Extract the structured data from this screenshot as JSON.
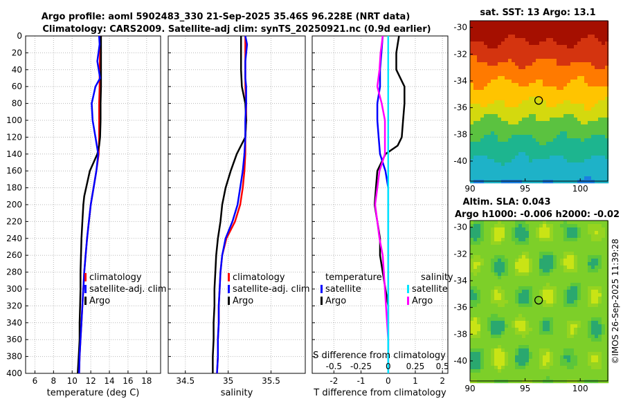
{
  "title_line1": "Argo profile: aoml 5902483_330 21-Sep-2025 35.46S 96.228E (NRT data)",
  "title_line2": "Climatology: CARS2009. Satellite-adj clim: synTS_20250921.nc (0.9d earlier)",
  "sst_title": "sat. SST: 13 Argo: 13.1",
  "sla_title1": "Altim. SLA: 0.043",
  "sla_title2": "Argo h1000: -0.006 h2000: -0.02",
  "credit": "©IMOS 26-Sep-2025 11:39:28",
  "colors": {
    "climatology": "#ff0000",
    "satellite": "#0000ff",
    "argo": "#000000",
    "sal_satellite": "#00e5ff",
    "sal_argo": "#ff00ff"
  },
  "chart_data": [
    {
      "type": "line",
      "name": "temperature profile",
      "xlabel": "temperature (deg C)",
      "ylabel": "",
      "xlim": [
        5,
        19.5
      ],
      "ylim": [
        400,
        0
      ],
      "xticks": [
        6,
        8,
        10,
        12,
        14,
        16,
        18
      ],
      "yticks": [
        0,
        20,
        40,
        60,
        80,
        100,
        120,
        140,
        160,
        180,
        200,
        220,
        240,
        260,
        280,
        300,
        320,
        340,
        360,
        380,
        400
      ],
      "grid": true,
      "legend": [
        "climatology",
        "satellite-adj. clim",
        "Argo"
      ],
      "legend_position": "center-right",
      "series": [
        {
          "name": "climatology",
          "depth": [
            0,
            20,
            40,
            60,
            80,
            100,
            120,
            140,
            160,
            180,
            200,
            220,
            240,
            260,
            280,
            300,
            320,
            340,
            360,
            380,
            400
          ],
          "values": [
            13.1,
            13.0,
            12.95,
            12.95,
            12.9,
            12.9,
            12.9,
            12.85,
            12.6,
            12.3,
            12.0,
            11.8,
            11.6,
            11.45,
            11.3,
            11.2,
            11.1,
            11.0,
            10.9,
            10.8,
            10.75
          ]
        },
        {
          "name": "satellite-adj. clim",
          "depth": [
            0,
            10,
            30,
            50,
            60,
            80,
            100,
            120,
            140,
            160,
            180,
            200,
            220,
            240,
            260,
            280,
            300,
            320,
            340,
            360,
            380,
            400
          ],
          "values": [
            12.9,
            12.95,
            12.7,
            13.0,
            12.5,
            12.1,
            12.2,
            12.5,
            12.8,
            12.6,
            12.3,
            12.0,
            11.8,
            11.6,
            11.45,
            11.3,
            11.2,
            11.1,
            11.0,
            10.9,
            10.8,
            10.75
          ]
        },
        {
          "name": "Argo",
          "depth": [
            0,
            20,
            40,
            60,
            80,
            100,
            120,
            130,
            140,
            150,
            160,
            180,
            190,
            200,
            220,
            240,
            260,
            280,
            300,
            320,
            340,
            360,
            380,
            400
          ],
          "values": [
            13.1,
            13.1,
            13.1,
            13.1,
            13.05,
            13.05,
            13.0,
            12.9,
            12.7,
            12.3,
            11.9,
            11.5,
            11.3,
            11.2,
            11.1,
            11.0,
            10.95,
            10.9,
            10.9,
            10.85,
            10.8,
            10.8,
            10.7,
            10.6
          ]
        }
      ]
    },
    {
      "type": "line",
      "name": "salinity profile",
      "xlabel": "salinity",
      "xlim": [
        34.3,
        35.9
      ],
      "ylim": [
        400,
        0
      ],
      "xticks": [
        34.5,
        35,
        35.5
      ],
      "grid": true,
      "legend": [
        "climatology",
        "satellite-adj. clim",
        "Argo"
      ],
      "legend_position": "center-right",
      "series": [
        {
          "name": "climatology",
          "depth": [
            0,
            20,
            40,
            60,
            80,
            100,
            120,
            140,
            160,
            180,
            200,
            220,
            240,
            260,
            280,
            300,
            320,
            340,
            360,
            380,
            400
          ],
          "values": [
            35.2,
            35.2,
            35.2,
            35.2,
            35.21,
            35.21,
            35.2,
            35.2,
            35.19,
            35.17,
            35.14,
            35.08,
            34.98,
            34.93,
            34.91,
            34.9,
            34.89,
            34.89,
            34.88,
            34.88,
            34.87
          ]
        },
        {
          "name": "satellite-adj. clim",
          "depth": [
            0,
            10,
            30,
            50,
            60,
            80,
            100,
            120,
            140,
            160,
            180,
            200,
            220,
            240,
            260,
            280,
            300,
            320,
            340,
            360,
            380,
            400
          ],
          "values": [
            35.2,
            35.22,
            35.2,
            35.2,
            35.21,
            35.21,
            35.2,
            35.2,
            35.19,
            35.17,
            35.14,
            35.11,
            35.05,
            34.97,
            34.93,
            34.91,
            34.9,
            34.89,
            34.89,
            34.88,
            34.88,
            34.87
          ]
        },
        {
          "name": "Argo",
          "depth": [
            0,
            20,
            40,
            60,
            80,
            100,
            120,
            130,
            140,
            160,
            180,
            200,
            220,
            240,
            260,
            280,
            300,
            320,
            340,
            360,
            380,
            400
          ],
          "values": [
            35.15,
            35.15,
            35.15,
            35.16,
            35.2,
            35.21,
            35.2,
            35.15,
            35.1,
            35.03,
            34.97,
            34.93,
            34.91,
            34.88,
            34.86,
            34.85,
            34.84,
            34.84,
            34.83,
            34.83,
            34.82,
            34.82
          ]
        }
      ]
    },
    {
      "type": "line",
      "name": "difference from climatology",
      "xlabel": "T difference from climatology",
      "xlabel_top": "S difference from climatology",
      "xlim": [
        -2.8,
        2.2
      ],
      "ylim": [
        400,
        0
      ],
      "xticks": [
        -2,
        -1,
        0,
        1,
        2
      ],
      "xticks_s": [
        "-0.5",
        "-0.25",
        "0",
        "0.25",
        "0.5"
      ],
      "grid": true,
      "legend_temperature_title": "temperature",
      "legend_salinity_title": "salinity",
      "legend_temperature": [
        "satellite",
        "Argo"
      ],
      "legend_salinity": [
        "satellite",
        "Argo"
      ],
      "series": [
        {
          "name": "temperature satellite",
          "depth": [
            0,
            20,
            40,
            60,
            80,
            100,
            120,
            140,
            160,
            180,
            200,
            220,
            240,
            260,
            280,
            300,
            320,
            340,
            360,
            380,
            400
          ],
          "values": [
            -0.2,
            -0.25,
            -0.3,
            -0.3,
            -0.4,
            -0.4,
            -0.35,
            -0.3,
            -0.1,
            0.0,
            0.0,
            0.0,
            0.0,
            0.0,
            0.0,
            0.0,
            0.0,
            0.0,
            0.0,
            0.0,
            0.0
          ]
        },
        {
          "name": "temperature Argo",
          "depth": [
            0,
            20,
            40,
            60,
            80,
            100,
            120,
            130,
            140,
            160,
            180,
            200,
            220,
            240,
            260,
            280,
            300,
            320,
            340,
            360,
            380,
            400
          ],
          "values": [
            0.4,
            0.3,
            0.3,
            0.6,
            0.6,
            0.55,
            0.5,
            0.35,
            -0.1,
            -0.4,
            -0.45,
            -0.5,
            -0.4,
            -0.3,
            -0.3,
            -0.2,
            -0.1,
            0.0,
            0.0,
            0.0,
            0.0,
            0.0
          ]
        },
        {
          "name": "salinity satellite",
          "depth": [
            0,
            20,
            40,
            60,
            80,
            100,
            120,
            140,
            160,
            180,
            200,
            220,
            240,
            260,
            280,
            300,
            320,
            340,
            360,
            380,
            400
          ],
          "values": [
            0.0,
            0.0,
            0.0,
            0.0,
            0.0,
            0.0,
            0.0,
            0.0,
            0.0,
            0.0,
            0.0,
            0.0,
            0.0,
            0.0,
            0.0,
            0.0,
            0.0,
            0.0,
            0.0,
            0.0,
            0.0
          ]
        },
        {
          "name": "salinity Argo",
          "depth": [
            0,
            20,
            40,
            60,
            80,
            100,
            120,
            140,
            160,
            180,
            200,
            220,
            240,
            260,
            280,
            300,
            320,
            340,
            360,
            380,
            400
          ],
          "values": [
            -0.05,
            -0.07,
            -0.08,
            -0.1,
            -0.06,
            -0.03,
            -0.03,
            -0.03,
            -0.08,
            -0.1,
            -0.12,
            -0.1,
            -0.08,
            -0.05,
            -0.04,
            -0.03,
            -0.02,
            -0.01,
            0.0,
            0.0,
            0.0
          ]
        }
      ]
    },
    {
      "type": "heatmap",
      "name": "satellite SST map",
      "title": "sat. SST: 13 Argo: 13.1",
      "xlim": [
        90,
        102.5
      ],
      "ylim": [
        -41.5,
        -29.5
      ],
      "xticks": [
        90,
        95,
        100
      ],
      "yticks": [
        -30,
        -32,
        -34,
        -36,
        -38,
        -40
      ],
      "argo_position": {
        "lon": 96.228,
        "lat": -35.46
      }
    },
    {
      "type": "heatmap",
      "name": "altimetry SLA map",
      "title": "Altim. SLA: 0.043",
      "xlim": [
        90,
        102.5
      ],
      "ylim": [
        -41.5,
        -29.5
      ],
      "xticks": [
        90,
        95,
        100
      ],
      "yticks": [
        -30,
        -32,
        -34,
        -36,
        -38,
        -40
      ],
      "argo_position": {
        "lon": 96.228,
        "lat": -35.46
      }
    }
  ]
}
